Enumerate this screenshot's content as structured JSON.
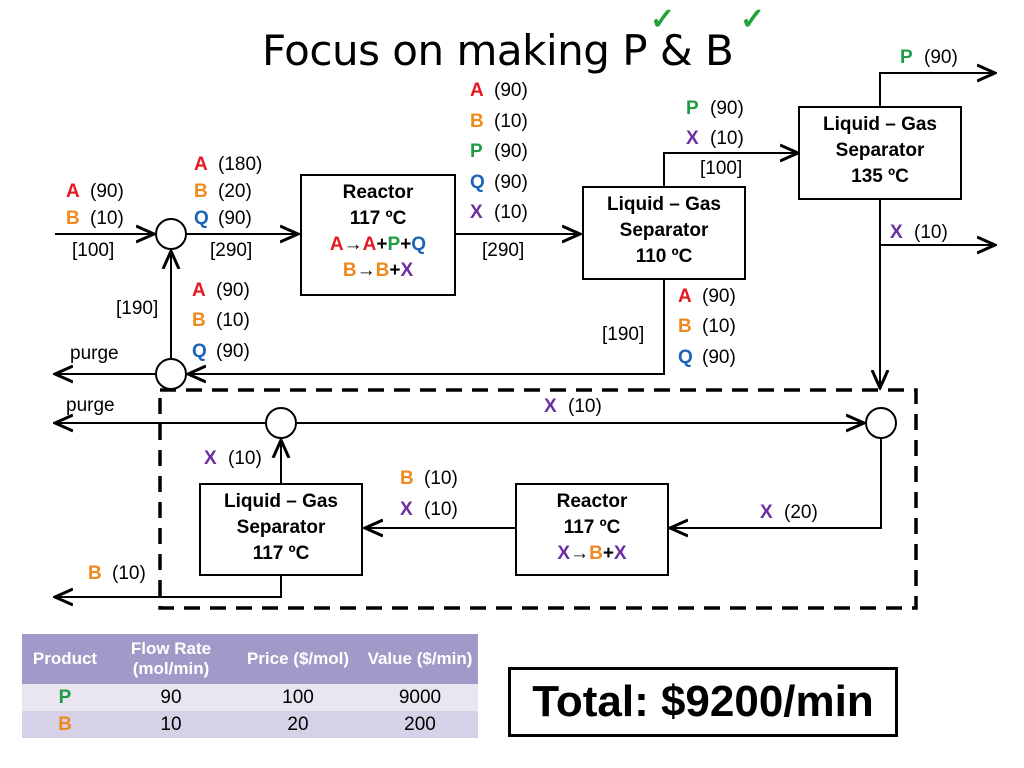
{
  "title": "Focus on making P & B",
  "checkmarks": [
    "✓",
    "✓"
  ],
  "colors": {
    "A": "#e3191f",
    "B": "#ef8a1f",
    "P": "#1f9b45",
    "Q": "#1a64b5",
    "X": "#6b2fa0"
  },
  "units": {
    "reactor1": {
      "name": "Reactor",
      "temp": "117 ºC",
      "rxn1": [
        "A",
        "→",
        "A",
        "+",
        "P",
        "+",
        "Q"
      ],
      "rxn2": [
        "B",
        "→",
        "B",
        "+",
        "X"
      ]
    },
    "sep1": {
      "name": "Liquid – Gas",
      "name2": "Separator",
      "temp": "110 ºC"
    },
    "sep2": {
      "name": "Liquid – Gas",
      "name2": "Separator",
      "temp": "135 ºC"
    },
    "reactor2": {
      "name": "Reactor",
      "temp": "117 ºC",
      "rxn": [
        "X",
        "→",
        "B",
        "+",
        "X"
      ]
    },
    "sep3": {
      "name": "Liquid – Gas",
      "name2": "Separator",
      "temp": "117 ºC"
    }
  },
  "streams": {
    "feed": {
      "A": "(90)",
      "B": "(10)",
      "total": "[100]"
    },
    "mix_out": {
      "A": "(180)",
      "B": "(20)",
      "Q": "(90)",
      "total": "[290]"
    },
    "reactor_out": {
      "A": "(90)",
      "B": "(10)",
      "P": "(90)",
      "Q": "(90)",
      "X": "(10)",
      "total": "[290]"
    },
    "sep1_vapor": {
      "P": "(90)",
      "X": "(10)",
      "total": "[100]"
    },
    "sep2_top": {
      "P": "(90)"
    },
    "sep2_bottom": {
      "X": "(10)"
    },
    "sep1_liquid": {
      "A": "(90)",
      "B": "(10)",
      "Q": "(90)",
      "total": "[190]"
    },
    "recycle": {
      "A": "(90)",
      "B": "(10)",
      "Q": "(90)",
      "total": "[190]"
    },
    "purge1": "purge",
    "purge2": "purge",
    "x_recycle": {
      "X": "(10)"
    },
    "x_feed2": {
      "X": "(20)"
    },
    "reactor2_out": {
      "B": "(10)",
      "X": "(10)"
    },
    "sep3_top": {
      "X": "(10)"
    },
    "sep3_bottom": {
      "B": "(10)"
    }
  },
  "table": {
    "headers": [
      "Product",
      "Flow Rate (mol/min)",
      "Price ($/mol)",
      "Value ($/min)"
    ],
    "rows": [
      {
        "product": "P",
        "flow": "90",
        "price": "100",
        "value": "9000"
      },
      {
        "product": "B",
        "flow": "10",
        "price": "20",
        "value": "200"
      }
    ]
  },
  "total": "Total: $9200/min"
}
